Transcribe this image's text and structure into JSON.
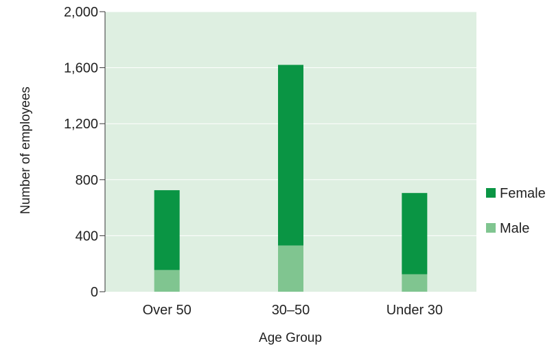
{
  "chart_data": {
    "type": "bar",
    "stacked": true,
    "categories": [
      "Over 50",
      "30–50",
      "Under 30"
    ],
    "series": [
      {
        "name": "Male",
        "values": [
          155,
          330,
          125
        ],
        "color": "#80c590"
      },
      {
        "name": "Female",
        "values": [
          570,
          1290,
          580
        ],
        "color": "#0a9544"
      }
    ],
    "xlabel": "Age Group",
    "ylabel": "Number of employees",
    "ylim": [
      0,
      2000
    ],
    "yticks": [
      0,
      400,
      800,
      1200,
      1600,
      2000
    ],
    "ytick_labels": [
      "0",
      "400",
      "800",
      "1,200",
      "1,600",
      "2,000"
    ],
    "grid": true,
    "legend_position": "right",
    "legend_order": [
      "Female",
      "Male"
    ],
    "plot_background": "#deefe1",
    "grid_color": "#ffffff"
  }
}
